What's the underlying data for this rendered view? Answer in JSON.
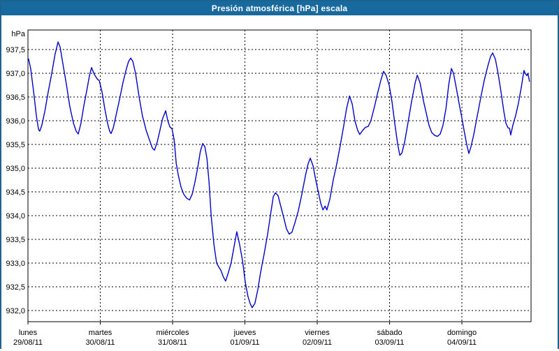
{
  "window": {
    "title": "Presión atmosférica [hPa] escala"
  },
  "colors": {
    "titlebar": "#17699E",
    "frame_border": "#1C6392",
    "background": "#FFFFFF",
    "grid": "#000000",
    "text": "#000000",
    "line": "#0000C8"
  },
  "chart_data": {
    "type": "line",
    "title": "Presión atmosférica [hPa] escala",
    "unit_label": "hPa",
    "ylabel": "hPa",
    "ylim": [
      932.0,
      937.5
    ],
    "ytick_step": 0.5,
    "grid": "dashed",
    "legend_position": "none",
    "line_color": "#0000C8",
    "yticks": [
      {
        "value": 937.5,
        "label": "937,5"
      },
      {
        "value": 937.0,
        "label": "937,0"
      },
      {
        "value": 936.5,
        "label": "936,5"
      },
      {
        "value": 936.0,
        "label": "936,0"
      },
      {
        "value": 935.5,
        "label": "935,5"
      },
      {
        "value": 935.0,
        "label": "935,0"
      },
      {
        "value": 934.5,
        "label": "934,5"
      },
      {
        "value": 934.0,
        "label": "934,0"
      },
      {
        "value": 933.5,
        "label": "933,5"
      },
      {
        "value": 933.0,
        "label": "933,0"
      },
      {
        "value": 932.5,
        "label": "932,5"
      },
      {
        "value": 932.0,
        "label": "932,0"
      }
    ],
    "x_days": [
      {
        "name": "lunes",
        "date": "29/08/11"
      },
      {
        "name": "martes",
        "date": "30/08/11"
      },
      {
        "name": "miércoles",
        "date": "31/08/11"
      },
      {
        "name": "jueves",
        "date": "01/09/11"
      },
      {
        "name": "viernes",
        "date": "02/09/11"
      },
      {
        "name": "sábado",
        "date": "03/09/11"
      },
      {
        "name": "domingo",
        "date": "04/09/11"
      }
    ],
    "x_unit": "hours_since_monday_00",
    "x_range_hours": [
      0,
      167
    ],
    "series": [
      {
        "name": "Presión atmosférica",
        "unit": "hPa",
        "points": [
          [
            0.2,
            937.3
          ],
          [
            0.9,
            937.1
          ],
          [
            1.9,
            936.6
          ],
          [
            2.8,
            936.1
          ],
          [
            3.5,
            935.82
          ],
          [
            3.9,
            935.78
          ],
          [
            4.6,
            935.9
          ],
          [
            5.6,
            936.2
          ],
          [
            6.7,
            936.6
          ],
          [
            7.9,
            937.0
          ],
          [
            9.0,
            937.4
          ],
          [
            10.0,
            937.66
          ],
          [
            10.7,
            937.55
          ],
          [
            11.6,
            937.2
          ],
          [
            12.8,
            936.75
          ],
          [
            13.9,
            936.3
          ],
          [
            15.1,
            935.95
          ],
          [
            16.0,
            935.78
          ],
          [
            16.7,
            935.72
          ],
          [
            17.6,
            935.95
          ],
          [
            18.5,
            936.3
          ],
          [
            19.7,
            936.7
          ],
          [
            20.4,
            936.95
          ],
          [
            21.1,
            937.12
          ],
          [
            22.0,
            936.98
          ],
          [
            23.0,
            936.88
          ],
          [
            23.7,
            936.84
          ],
          [
            24.6,
            936.6
          ],
          [
            25.5,
            936.25
          ],
          [
            26.4,
            935.95
          ],
          [
            27.1,
            935.78
          ],
          [
            27.6,
            935.73
          ],
          [
            28.3,
            935.85
          ],
          [
            29.2,
            936.1
          ],
          [
            30.4,
            936.45
          ],
          [
            31.5,
            936.8
          ],
          [
            32.7,
            937.1
          ],
          [
            33.4,
            937.25
          ],
          [
            34.1,
            937.32
          ],
          [
            34.8,
            937.25
          ],
          [
            35.7,
            937.0
          ],
          [
            36.9,
            936.5
          ],
          [
            38.0,
            936.1
          ],
          [
            39.2,
            935.8
          ],
          [
            40.3,
            935.6
          ],
          [
            41.3,
            935.42
          ],
          [
            42.0,
            935.38
          ],
          [
            42.9,
            935.55
          ],
          [
            43.8,
            935.8
          ],
          [
            44.7,
            936.05
          ],
          [
            45.7,
            936.21
          ],
          [
            46.4,
            936.0
          ],
          [
            47.1,
            935.87
          ],
          [
            47.8,
            935.83
          ],
          [
            48.5,
            935.6
          ],
          [
            49.2,
            935.1
          ],
          [
            49.9,
            934.85
          ],
          [
            50.8,
            934.6
          ],
          [
            51.7,
            934.45
          ],
          [
            52.6,
            934.37
          ],
          [
            53.6,
            934.33
          ],
          [
            54.5,
            934.45
          ],
          [
            55.4,
            934.7
          ],
          [
            56.3,
            935.0
          ],
          [
            57.2,
            935.35
          ],
          [
            58.0,
            935.52
          ],
          [
            58.7,
            935.45
          ],
          [
            59.4,
            935.2
          ],
          [
            60.1,
            934.7
          ],
          [
            60.8,
            934.0
          ],
          [
            61.7,
            933.4
          ],
          [
            62.6,
            933.0
          ],
          [
            63.3,
            932.92
          ],
          [
            64.0,
            932.85
          ],
          [
            64.9,
            932.7
          ],
          [
            65.6,
            932.62
          ],
          [
            66.5,
            932.8
          ],
          [
            67.4,
            933.0
          ],
          [
            68.4,
            933.35
          ],
          [
            69.3,
            933.66
          ],
          [
            70.2,
            933.4
          ],
          [
            71.2,
            933.05
          ],
          [
            72.1,
            932.6
          ],
          [
            73.0,
            932.3
          ],
          [
            73.7,
            932.15
          ],
          [
            74.4,
            932.06
          ],
          [
            75.3,
            932.15
          ],
          [
            76.3,
            932.45
          ],
          [
            77.2,
            932.8
          ],
          [
            78.4,
            933.2
          ],
          [
            79.5,
            933.6
          ],
          [
            80.7,
            934.1
          ],
          [
            81.4,
            934.4
          ],
          [
            82.1,
            934.48
          ],
          [
            83.0,
            934.42
          ],
          [
            83.9,
            934.2
          ],
          [
            84.9,
            933.95
          ],
          [
            85.8,
            933.72
          ],
          [
            86.7,
            933.61
          ],
          [
            87.6,
            933.65
          ],
          [
            88.6,
            933.85
          ],
          [
            89.7,
            934.1
          ],
          [
            90.9,
            934.45
          ],
          [
            92.1,
            934.85
          ],
          [
            93.0,
            935.1
          ],
          [
            93.7,
            935.21
          ],
          [
            94.6,
            935.05
          ],
          [
            95.5,
            934.75
          ],
          [
            96.5,
            934.45
          ],
          [
            97.2,
            934.25
          ],
          [
            97.9,
            934.12
          ],
          [
            98.6,
            934.2
          ],
          [
            99.2,
            934.12
          ],
          [
            100.2,
            934.35
          ],
          [
            101.3,
            934.75
          ],
          [
            102.5,
            935.1
          ],
          [
            103.7,
            935.5
          ],
          [
            104.8,
            935.9
          ],
          [
            105.7,
            936.25
          ],
          [
            106.7,
            936.52
          ],
          [
            107.6,
            936.35
          ],
          [
            108.5,
            936.0
          ],
          [
            109.4,
            935.8
          ],
          [
            110.1,
            935.71
          ],
          [
            111.1,
            935.8
          ],
          [
            112.0,
            935.86
          ],
          [
            112.9,
            935.88
          ],
          [
            113.8,
            936.0
          ],
          [
            115.0,
            936.3
          ],
          [
            116.1,
            936.6
          ],
          [
            117.1,
            936.85
          ],
          [
            118.0,
            937.04
          ],
          [
            118.9,
            936.95
          ],
          [
            119.9,
            936.74
          ],
          [
            120.8,
            936.4
          ],
          [
            121.7,
            935.95
          ],
          [
            122.7,
            935.5
          ],
          [
            123.4,
            935.27
          ],
          [
            124.1,
            935.32
          ],
          [
            125.0,
            935.55
          ],
          [
            126.1,
            935.95
          ],
          [
            127.3,
            936.4
          ],
          [
            128.5,
            936.8
          ],
          [
            129.2,
            936.96
          ],
          [
            130.1,
            936.8
          ],
          [
            131.3,
            936.4
          ],
          [
            132.2,
            936.15
          ],
          [
            133.1,
            935.9
          ],
          [
            134.0,
            935.75
          ],
          [
            135.0,
            935.69
          ],
          [
            135.9,
            935.67
          ],
          [
            136.8,
            935.72
          ],
          [
            137.7,
            935.9
          ],
          [
            138.7,
            936.25
          ],
          [
            139.6,
            936.75
          ],
          [
            140.5,
            937.1
          ],
          [
            141.2,
            937.0
          ],
          [
            142.1,
            936.7
          ],
          [
            143.1,
            936.35
          ],
          [
            144.0,
            936.06
          ],
          [
            144.7,
            935.8
          ],
          [
            145.6,
            935.5
          ],
          [
            146.3,
            935.31
          ],
          [
            147.0,
            935.45
          ],
          [
            147.9,
            935.7
          ],
          [
            149.1,
            936.1
          ],
          [
            150.3,
            936.5
          ],
          [
            151.4,
            936.85
          ],
          [
            152.6,
            937.15
          ],
          [
            153.5,
            937.35
          ],
          [
            154.2,
            937.43
          ],
          [
            155.1,
            937.3
          ],
          [
            156.0,
            937.0
          ],
          [
            157.0,
            936.6
          ],
          [
            157.9,
            936.2
          ],
          [
            158.6,
            935.95
          ],
          [
            159.3,
            935.85
          ],
          [
            159.8,
            935.84
          ],
          [
            160.2,
            935.7
          ],
          [
            160.9,
            935.9
          ],
          [
            161.8,
            936.1
          ],
          [
            162.7,
            936.35
          ],
          [
            163.7,
            936.7
          ],
          [
            164.6,
            937.06
          ],
          [
            165.0,
            937.0
          ],
          [
            165.5,
            936.95
          ],
          [
            165.9,
            937.0
          ],
          [
            166.4,
            936.83
          ]
        ]
      }
    ]
  }
}
